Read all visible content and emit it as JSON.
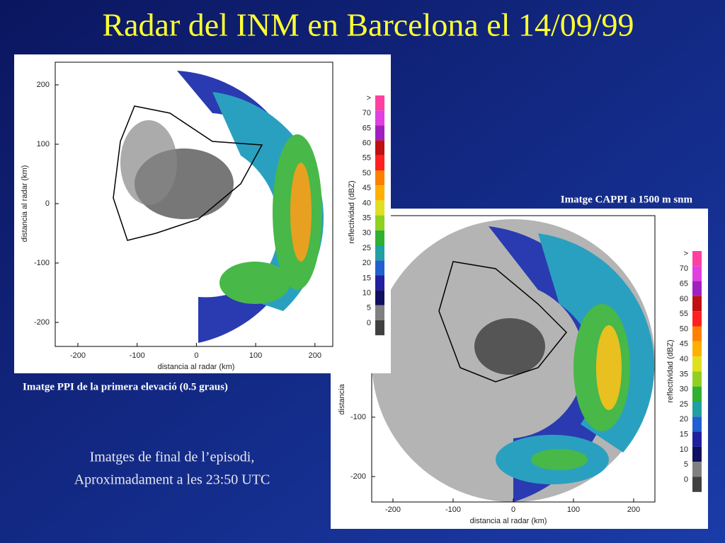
{
  "title": "Radar del INM en Barcelona el 14/09/99",
  "panels": [
    {
      "caption": "Imatge CAPPI a 1500 m snm",
      "x_axis_label": "distancia al radar (km)",
      "y_axis_label": "distancia",
      "x_ticks": [
        "-200",
        "-100",
        "0",
        "100",
        "200"
      ],
      "y_ticks": [
        "-100",
        "-200"
      ],
      "colorbar": {
        "label": "reflectividad (dBZ)",
        "ticks": [
          ">",
          "70",
          "65",
          "60",
          "55",
          "50",
          "45",
          "40",
          "35",
          "30",
          "25",
          "20",
          "15",
          "10",
          "5",
          "0"
        ]
      }
    },
    {
      "caption": "Imatge PPI de la primera elevació (0.5 graus)",
      "x_axis_label": "distancia al radar (km)",
      "y_axis_label": "distancia al radar (km)",
      "x_ticks": [
        "-200",
        "-100",
        "0",
        "100",
        "200"
      ],
      "y_ticks": [
        "200",
        "100",
        "0",
        "-100",
        "-200"
      ],
      "colorbar": {
        "label": "reflectividad (dBZ)",
        "ticks": [
          ">",
          "70",
          "65",
          "60",
          "55",
          "50",
          "45",
          "40",
          "35",
          "30",
          "25",
          "20",
          "15",
          "10",
          "5",
          "0"
        ]
      }
    }
  ],
  "note": [
    "Imatges de final de l’episodi,",
    "Aproximadament a les 23:50 UTC"
  ]
}
